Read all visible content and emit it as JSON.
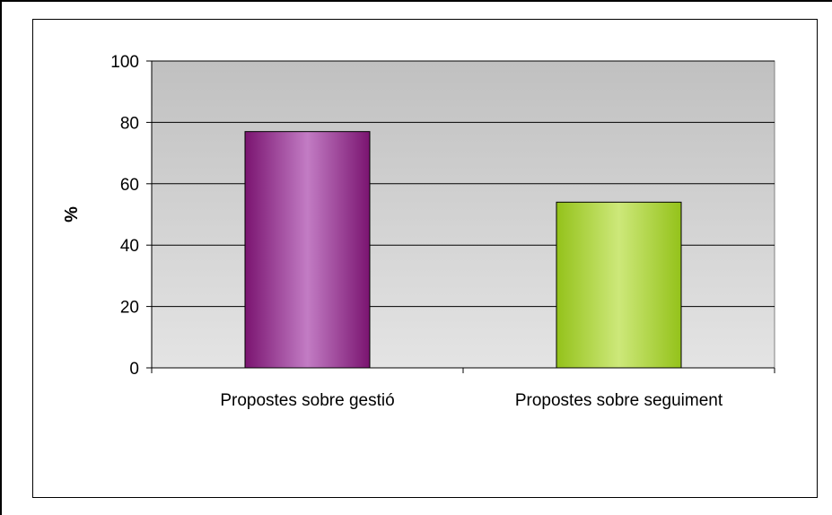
{
  "chart_data": {
    "type": "bar",
    "categories": [
      "Propostes sobre gestió",
      "Propostes sobre seguiment"
    ],
    "values": [
      77,
      54
    ],
    "title": "",
    "xlabel": "",
    "ylabel": "%",
    "ylim": [
      0,
      100
    ],
    "yticks": [
      "0",
      "20",
      "40",
      "60",
      "80",
      "100"
    ],
    "grid": true,
    "legend": "none",
    "colors": {
      "bar_0": [
        "#7a1470",
        "#c27cc4"
      ],
      "bar_1": [
        "#94c21a",
        "#cde87a"
      ],
      "plot_background_top": "#c0c0c0",
      "plot_background_bottom": "#e4e4e4"
    }
  }
}
